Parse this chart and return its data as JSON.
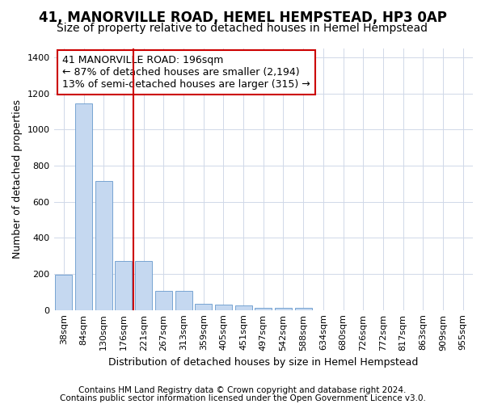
{
  "title1": "41, MANORVILLE ROAD, HEMEL HEMPSTEAD, HP3 0AP",
  "title2": "Size of property relative to detached houses in Hemel Hempstead",
  "xlabel": "Distribution of detached houses by size in Hemel Hempstead",
  "ylabel": "Number of detached properties",
  "categories": [
    "38sqm",
    "84sqm",
    "130sqm",
    "176sqm",
    "221sqm",
    "267sqm",
    "313sqm",
    "359sqm",
    "405sqm",
    "451sqm",
    "497sqm",
    "542sqm",
    "588sqm",
    "634sqm",
    "680sqm",
    "726sqm",
    "772sqm",
    "817sqm",
    "863sqm",
    "909sqm",
    "955sqm"
  ],
  "values": [
    195,
    1145,
    715,
    270,
    270,
    108,
    108,
    35,
    30,
    25,
    13,
    13,
    13,
    0,
    0,
    0,
    0,
    0,
    0,
    0,
    0
  ],
  "bar_color": "#c5d8f0",
  "bar_edge_color": "#6699cc",
  "grid_color": "#d0d8e8",
  "vline_color": "#cc0000",
  "vline_x_index": 3.5,
  "annotation_text": "41 MANORVILLE ROAD: 196sqm\n← 87% of detached houses are smaller (2,194)\n13% of semi-detached houses are larger (315) →",
  "annotation_box_color": "#ffffff",
  "annotation_box_edge_color": "#cc0000",
  "ylim": [
    0,
    1450
  ],
  "yticks": [
    0,
    200,
    400,
    600,
    800,
    1000,
    1200,
    1400
  ],
  "footnote1": "Contains HM Land Registry data © Crown copyright and database right 2024.",
  "footnote2": "Contains public sector information licensed under the Open Government Licence v3.0.",
  "title1_fontsize": 12,
  "title2_fontsize": 10,
  "xlabel_fontsize": 9,
  "ylabel_fontsize": 9,
  "tick_fontsize": 8,
  "annotation_fontsize": 9,
  "footnote_fontsize": 7.5,
  "background_color": "#ffffff"
}
